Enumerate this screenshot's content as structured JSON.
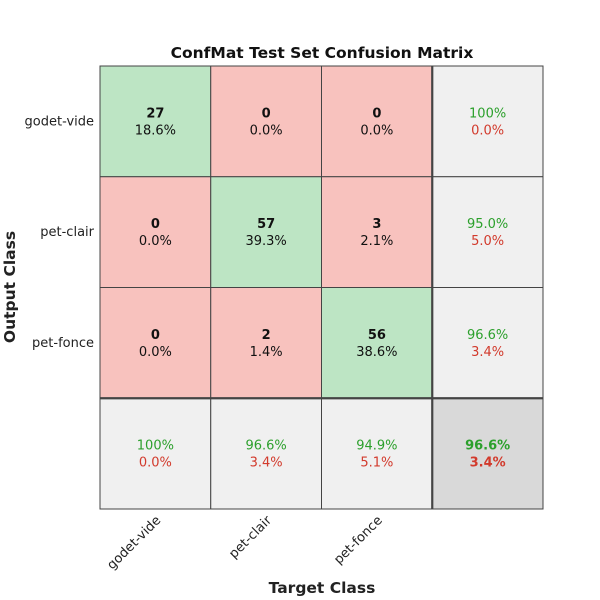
{
  "chart_data": {
    "type": "heatmap",
    "title": "ConfMat Test Set Confusion Matrix",
    "xlabel": "Target Class",
    "ylabel": "Output Class",
    "classes": [
      "godet-vide",
      "pet-clair",
      "pet-fonce"
    ],
    "counts": [
      [
        27,
        0,
        0
      ],
      [
        0,
        57,
        3
      ],
      [
        0,
        2,
        56
      ]
    ],
    "percents": [
      [
        "18.6%",
        "0.0%",
        "0.0%"
      ],
      [
        "0.0%",
        "39.3%",
        "2.1%"
      ],
      [
        "0.0%",
        "1.4%",
        "38.6%"
      ]
    ],
    "row_summary": [
      [
        "100%",
        "0.0%"
      ],
      [
        "95.0%",
        "5.0%"
      ],
      [
        "96.6%",
        "3.4%"
      ]
    ],
    "col_summary": [
      [
        "100%",
        "0.0%"
      ],
      [
        "96.6%",
        "3.4%"
      ],
      [
        "94.9%",
        "5.1%"
      ]
    ],
    "overall": [
      "96.6%",
      "3.4%"
    ]
  },
  "colors": {
    "correct": "#bde5c4",
    "incorrect": "#f8c2be",
    "summary": "#f0f0f0",
    "overall": "#d9d9d9",
    "positive_text": "#2ca02c",
    "negative_text": "#d23a2c"
  }
}
